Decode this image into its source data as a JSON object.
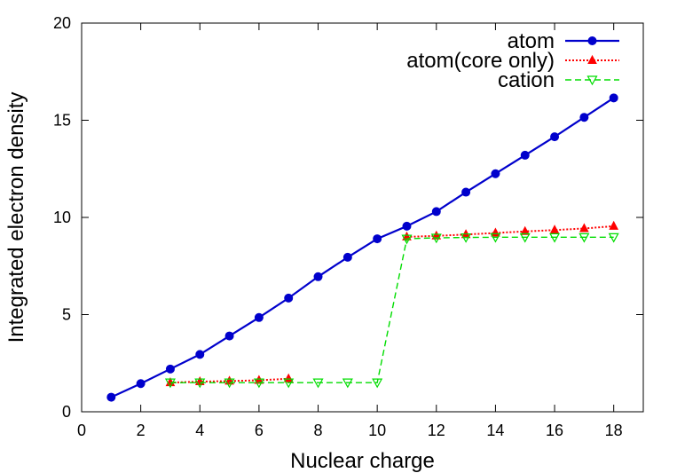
{
  "chart_data": {
    "type": "line",
    "xlabel": "Nuclear charge",
    "ylabel": "Integrated electron density",
    "xlim": [
      0,
      19
    ],
    "ylim": [
      0,
      20
    ],
    "xticks": [
      0,
      2,
      4,
      6,
      8,
      10,
      12,
      14,
      16,
      18
    ],
    "yticks": [
      0,
      5,
      10,
      15,
      20
    ],
    "grid": false,
    "legend_position": "top-right",
    "series": [
      {
        "name": "atom",
        "color": "#0000cc",
        "marker": "circle",
        "line": "solid",
        "x": [
          1,
          2,
          3,
          4,
          5,
          6,
          7,
          8,
          9,
          10,
          11,
          12,
          13,
          14,
          15,
          16,
          17,
          18
        ],
        "y": [
          0.75,
          1.45,
          2.2,
          2.95,
          3.9,
          4.85,
          5.85,
          6.95,
          7.95,
          8.9,
          9.55,
          10.3,
          11.3,
          12.25,
          13.2,
          14.15,
          15.15,
          16.15
        ]
      },
      {
        "name": "atom(core only)",
        "color": "#ff0000",
        "marker": "triangle-up",
        "line": "dotted",
        "segments": [
          {
            "x": [
              3,
              4,
              5,
              6,
              7
            ],
            "y": [
              1.5,
              1.55,
              1.58,
              1.62,
              1.7
            ]
          },
          {
            "x": [
              11,
              12,
              13,
              14,
              15,
              16,
              17,
              18
            ],
            "y": [
              9.0,
              9.05,
              9.12,
              9.2,
              9.28,
              9.35,
              9.43,
              9.55
            ]
          }
        ]
      },
      {
        "name": "cation",
        "color": "#00dd00",
        "marker": "triangle-down",
        "line": "dashed",
        "x": [
          3,
          4,
          5,
          6,
          7,
          8,
          9,
          10,
          11,
          12,
          13,
          14,
          15,
          16,
          17,
          18
        ],
        "y": [
          1.5,
          1.5,
          1.5,
          1.5,
          1.5,
          1.5,
          1.5,
          1.5,
          8.9,
          8.95,
          8.97,
          8.98,
          8.98,
          8.98,
          8.98,
          8.98
        ]
      }
    ]
  }
}
